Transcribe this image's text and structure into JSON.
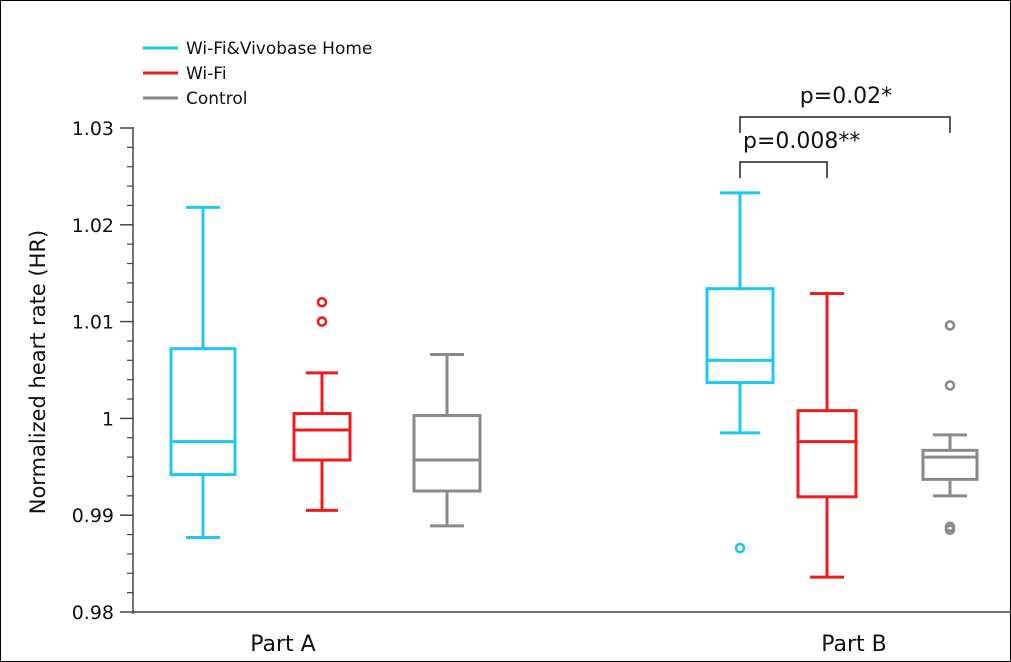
{
  "chart_data": {
    "type": "box",
    "ylabel": "Normalized heart rate (HR)",
    "ylim": [
      0.98,
      1.03
    ],
    "yticks": [
      0.98,
      0.99,
      1,
      1.01,
      1.02,
      1.03
    ],
    "ytick_labels": [
      "0.98",
      "0.99",
      "1",
      "1.01",
      "1.02",
      "1.03"
    ],
    "categories": [
      "Part A",
      "Part B"
    ],
    "legend": {
      "placement": "top-left",
      "entries": [
        {
          "name": "Wi-Fi&Vivobase Home",
          "color": "#1EC8F0"
        },
        {
          "name": "Wi-Fi",
          "color": "#EE1C1C"
        },
        {
          "name": "Control",
          "color": "#8A8A8A"
        }
      ]
    },
    "series": [
      {
        "name": "Wi-Fi&Vivobase Home",
        "color": "#1EC8F0",
        "boxes": [
          {
            "category": "Part A",
            "min": 0.9877,
            "q1": 0.9942,
            "median": 0.9976,
            "q3": 1.0072,
            "max": 1.0218,
            "outliers": []
          },
          {
            "category": "Part B",
            "min": 0.9985,
            "q1": 1.0037,
            "median": 1.006,
            "q3": 1.0134,
            "max": 1.0233,
            "outliers": [
              0.9866
            ]
          }
        ]
      },
      {
        "name": "Wi-Fi",
        "color": "#EE1C1C",
        "boxes": [
          {
            "category": "Part A",
            "min": 0.9905,
            "q1": 0.9957,
            "median": 0.9988,
            "q3": 1.0005,
            "max": 1.0047,
            "outliers": [
              1.01,
              1.012
            ]
          },
          {
            "category": "Part B",
            "min": 0.9836,
            "q1": 0.9919,
            "median": 0.9976,
            "q3": 1.0008,
            "max": 1.0129,
            "outliers": []
          }
        ]
      },
      {
        "name": "Control",
        "color": "#8A8A8A",
        "boxes": [
          {
            "category": "Part A",
            "min": 0.9889,
            "q1": 0.9925,
            "median": 0.9957,
            "q3": 1.0003,
            "max": 1.0066,
            "outliers": []
          },
          {
            "category": "Part B",
            "min": 0.992,
            "q1": 0.9937,
            "median": 0.996,
            "q3": 0.9967,
            "max": 0.9983,
            "outliers": [
              0.9885,
              0.9888,
              1.0034,
              1.0096
            ]
          }
        ]
      }
    ],
    "annotations": [
      {
        "text": "p=0.02*",
        "category": "Part B",
        "from_series": 0,
        "to_series": 2
      },
      {
        "text": "p=0.008**",
        "category": "Part B",
        "from_series": 0,
        "to_series": 1
      }
    ]
  }
}
